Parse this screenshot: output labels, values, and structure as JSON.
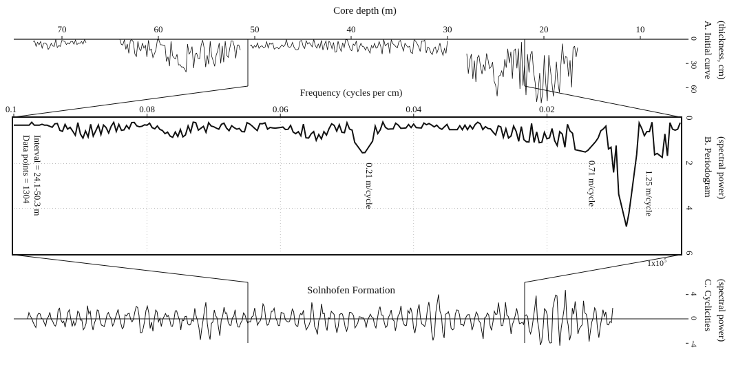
{
  "panels": {
    "core_depth_label": "Core depth (m)",
    "frequency_label": "Frequency (cycles per cm)",
    "formation_label": "Solnhofen Formation",
    "interval_text": "Interval = 24.1-50.3 m",
    "datapoints_text": "Data points = 1304",
    "scale_note": "1x10",
    "scale_exp": "5",
    "side_a_1": "A. Initial curve",
    "side_a_2": "(thickness, cm)",
    "side_b_1": "B. Periodogram",
    "side_b_2": "(spectral power)",
    "side_c_1": "C. Cyclicities",
    "side_c_2": "(spectral power)"
  },
  "chart_data": [
    {
      "id": "A",
      "type": "line",
      "xlabel": "Core depth (m)",
      "x_ticks": [
        70,
        60,
        50,
        40,
        30,
        20,
        10
      ],
      "xlim": [
        75,
        5
      ],
      "y_ticks": [
        0,
        30,
        60
      ],
      "ylim": [
        0,
        75
      ],
      "color": "#111111",
      "series": [
        {
          "x": [
            73,
            71,
            69,
            67.5
          ],
          "y": [
            6,
            10,
            5,
            8
          ]
        },
        {
          "x": [
            64,
            60,
            57,
            54,
            51.5
          ],
          "y": [
            10,
            20,
            32,
            25,
            18
          ]
        },
        {
          "x": [
            50.5,
            45,
            40,
            35,
            30
          ],
          "y": [
            8,
            10,
            12,
            14,
            16
          ]
        },
        {
          "x": [
            28,
            25,
            22,
            19,
            16.5
          ],
          "y": [
            35,
            50,
            60,
            55,
            40
          ]
        }
      ]
    },
    {
      "id": "B",
      "type": "line",
      "xlabel": "Frequency (cycles per cm)",
      "x_ticks": [
        0.1,
        0.08,
        0.06,
        0.04,
        0.02
      ],
      "xlim": [
        0.1,
        0
      ],
      "y_ticks": [
        0,
        2,
        4,
        6
      ],
      "ylim": [
        0,
        6
      ],
      "color": "#111111",
      "peaks": [
        {
          "freq": 0.0475,
          "power": 1.6,
          "label": "0.21 m/cycle"
        },
        {
          "freq": 0.0141,
          "power": 1.5,
          "label": "0.71 m/cycle"
        },
        {
          "freq": 0.008,
          "power": 4.9,
          "label": "1.25 m/cycle"
        }
      ],
      "series": [
        {
          "x": [
            0.1,
            0.095,
            0.09,
            0.085,
            0.08,
            0.075,
            0.07,
            0.065,
            0.06,
            0.055,
            0.05,
            0.0475,
            0.045,
            0.04,
            0.035,
            0.03,
            0.025,
            0.02,
            0.0141,
            0.012,
            0.01,
            0.008,
            0.006,
            0.004,
            0.002,
            0.0
          ],
          "y": [
            0.3,
            0.3,
            0.9,
            0.6,
            0.3,
            1.0,
            0.5,
            0.6,
            0.4,
            1.0,
            0.6,
            1.6,
            0.5,
            0.4,
            0.5,
            0.5,
            1.0,
            1.1,
            1.5,
            0.8,
            2.4,
            4.9,
            0.4,
            1.6,
            1.8,
            0.3
          ]
        }
      ]
    },
    {
      "id": "C",
      "type": "line",
      "title": "Solnhofen Formation",
      "x_ticks": [],
      "y_ticks": [
        4,
        0,
        -4
      ],
      "ylim": [
        -6,
        6
      ],
      "color": "#111111",
      "series": [
        {
          "x": [
            0.0,
            0.1,
            0.2,
            0.3,
            0.4,
            0.5,
            0.6,
            0.7,
            0.8,
            0.9,
            1.0
          ],
          "y": [
            0.5,
            -1.0,
            1.5,
            -2.0,
            1.0,
            -1.5,
            0.5,
            2.5,
            -3.0,
            4.5,
            0.5
          ]
        }
      ]
    }
  ]
}
